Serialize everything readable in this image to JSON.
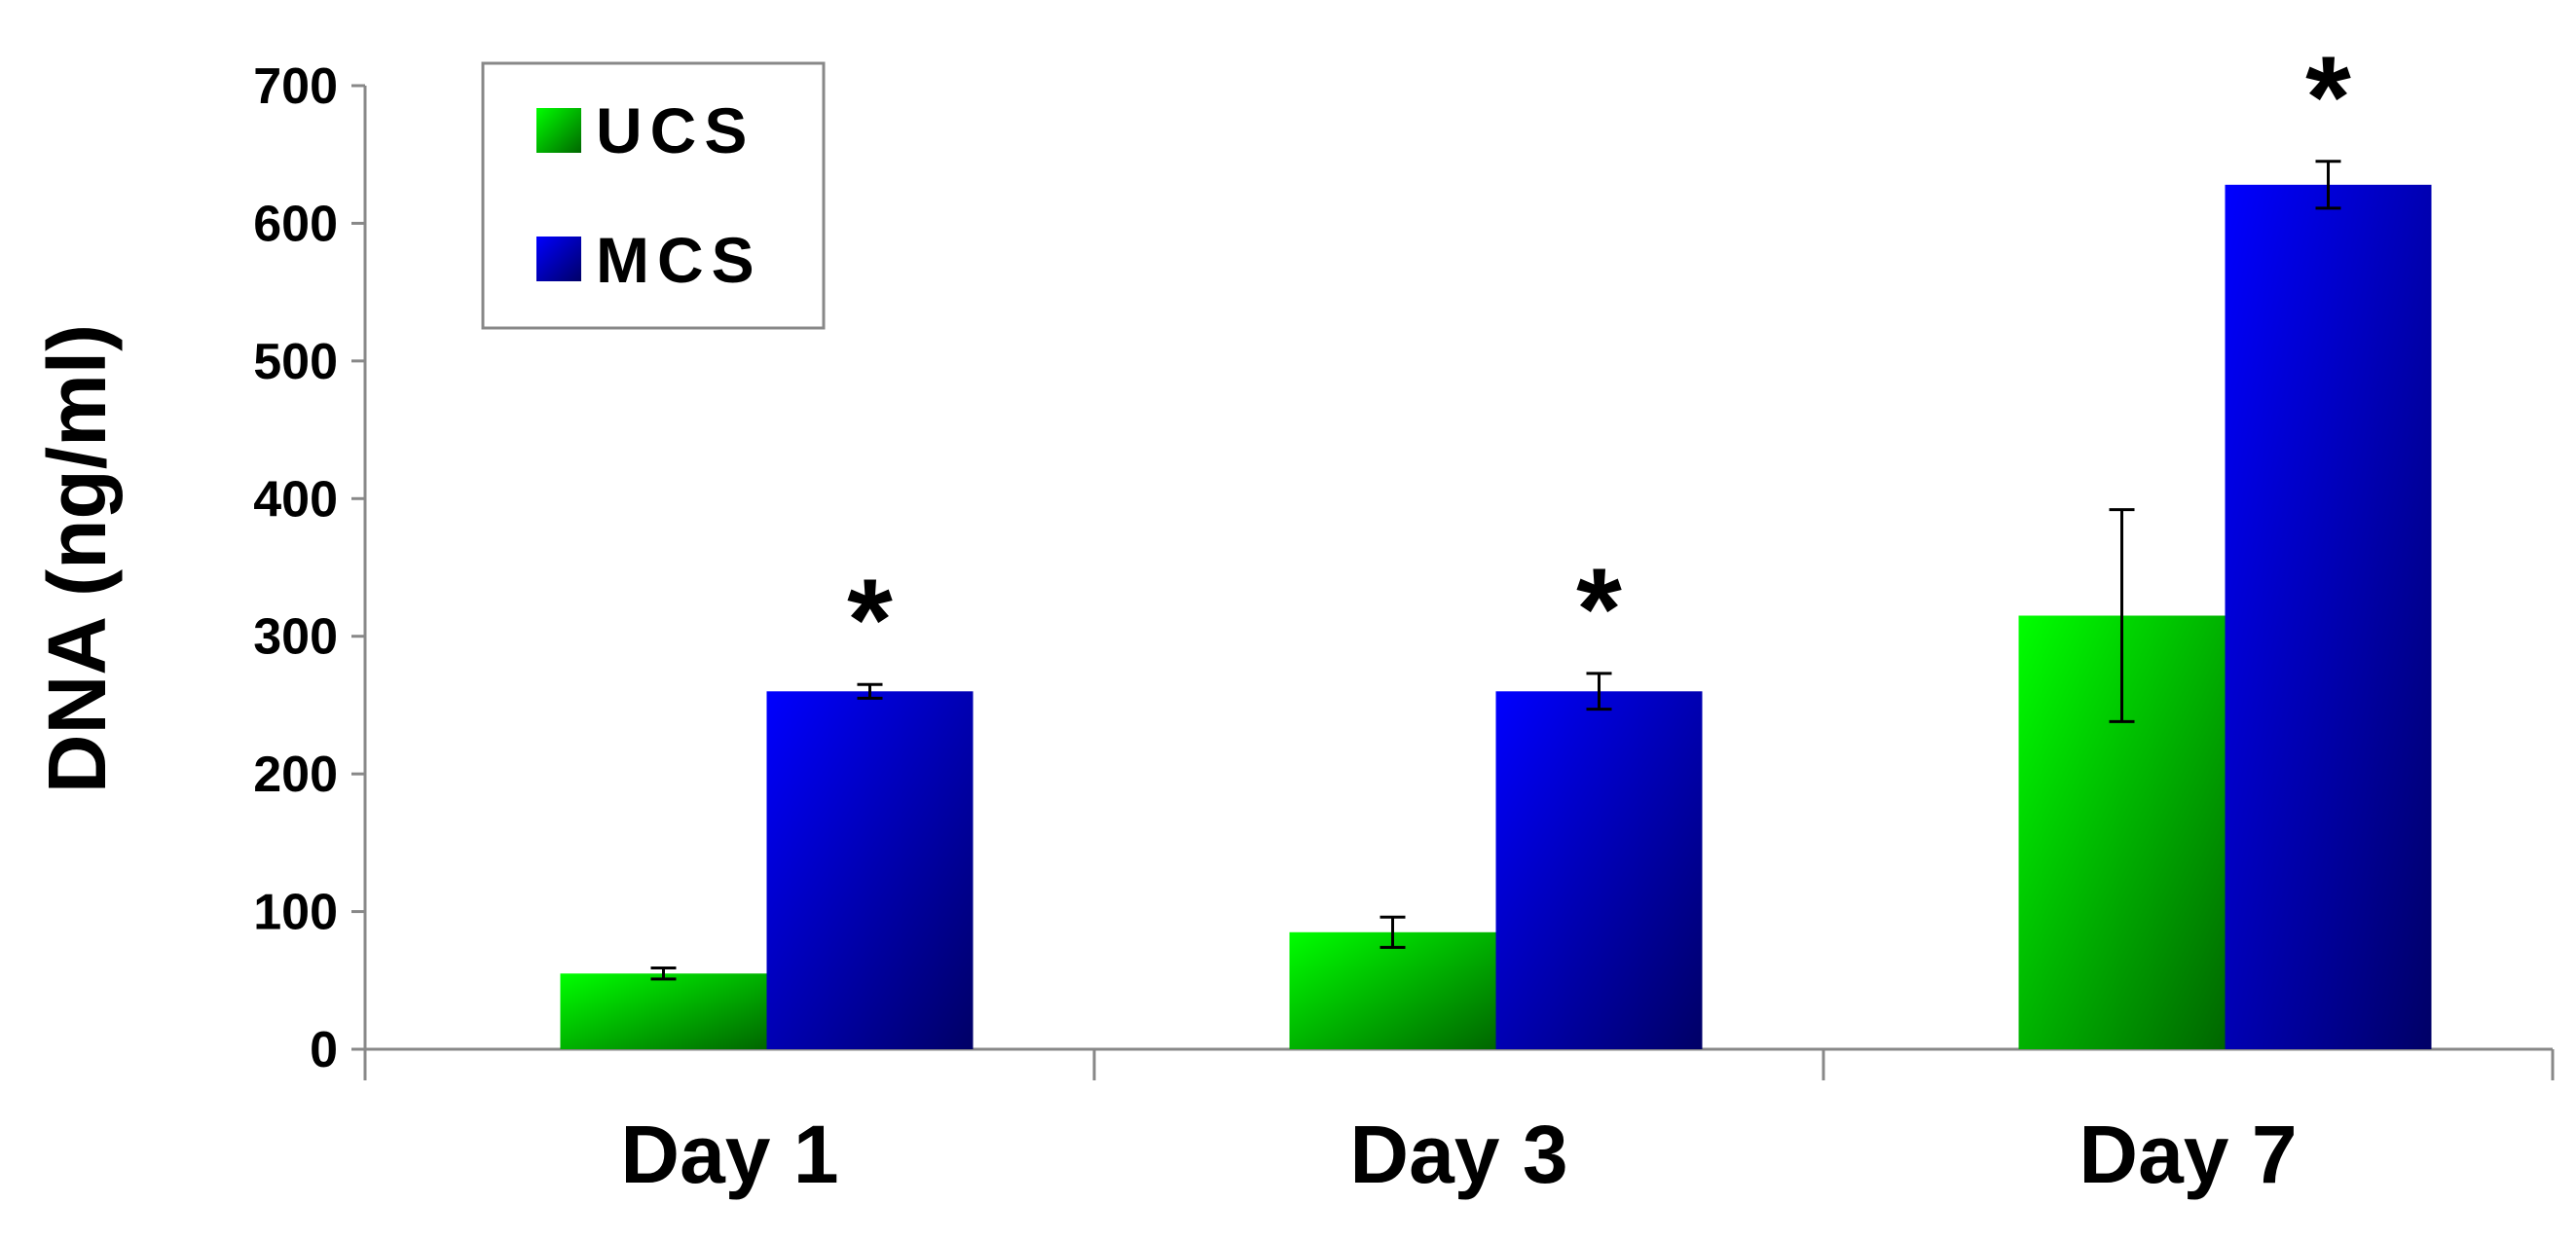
{
  "chart_data": {
    "type": "bar",
    "title": "",
    "xlabel": "",
    "ylabel": "DNA (ng/ml)",
    "ylim": [
      0,
      700
    ],
    "yticks": [
      0,
      100,
      200,
      300,
      400,
      500,
      600,
      700
    ],
    "categories": [
      "Day 1",
      "Day 3",
      "Day 7"
    ],
    "series": [
      {
        "name": "UCS",
        "values": [
          55,
          85,
          315
        ],
        "error": [
          4,
          11,
          77
        ],
        "color_top": "#00ff00",
        "color_bottom": "#006600"
      },
      {
        "name": "MCS",
        "values": [
          260,
          260,
          628
        ],
        "error": [
          5,
          13,
          17
        ],
        "color_top": "#0000ff",
        "color_bottom": "#000066"
      }
    ],
    "significance": [
      "*",
      "*",
      "*"
    ],
    "legend_position": "top-left",
    "grid": false
  }
}
